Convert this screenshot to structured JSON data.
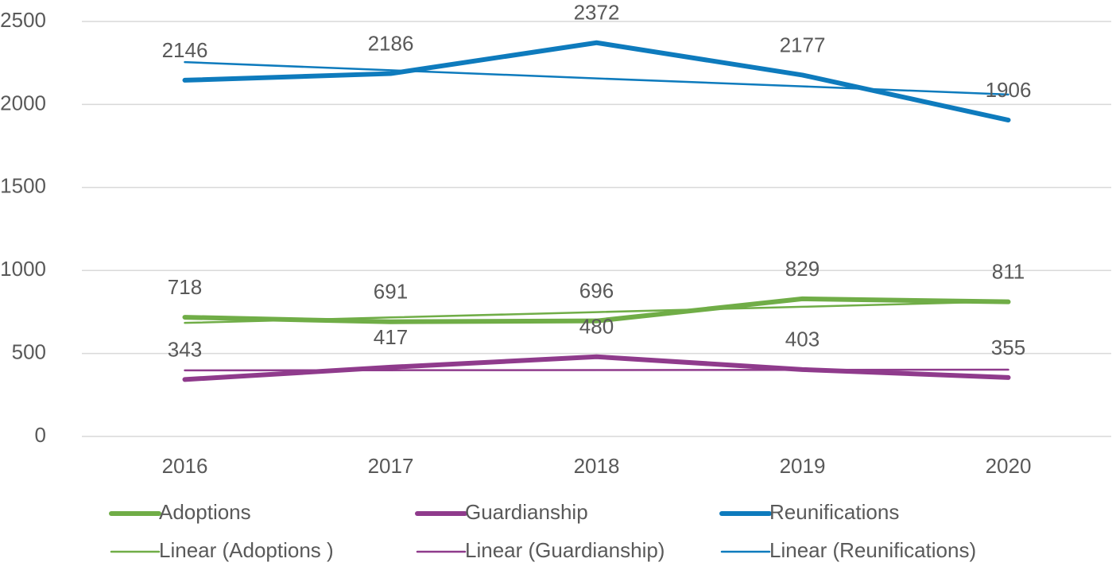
{
  "chart_data": {
    "type": "line",
    "categories": [
      "2016",
      "2017",
      "2018",
      "2019",
      "2020"
    ],
    "ylim": [
      0,
      2500
    ],
    "yticks": [
      0,
      500,
      1000,
      1500,
      2000,
      2500
    ],
    "grid": true,
    "legend": "bottom",
    "series": [
      {
        "name": "Adoptions",
        "color": "#70ad47",
        "width": 6,
        "data_labels": true,
        "values": [
          718,
          691,
          696,
          829,
          811
        ]
      },
      {
        "name": "Guardianship",
        "color": "#8f3b8c",
        "width": 6,
        "data_labels": true,
        "values": [
          343,
          417,
          480,
          403,
          355
        ]
      },
      {
        "name": "Reunifications",
        "color": "#0e7bbd",
        "width": 6,
        "data_labels": true,
        "values": [
          2146,
          2186,
          2372,
          2177,
          1906
        ]
      },
      {
        "name": "Linear (Adoptions )",
        "color": "#70ad47",
        "width": 2.5,
        "data_labels": false,
        "values": [
          684,
          717,
          749,
          781,
          814
        ]
      },
      {
        "name": "Linear (Guardianship)",
        "color": "#8f3b8c",
        "width": 2.5,
        "data_labels": false,
        "values": [
          398,
          399,
          400,
          401,
          402
        ]
      },
      {
        "name": "Linear (Reunifications)",
        "color": "#0e7bbd",
        "width": 2.5,
        "data_labels": false,
        "values": [
          2255,
          2206,
          2157,
          2109,
          2060
        ]
      }
    ]
  }
}
